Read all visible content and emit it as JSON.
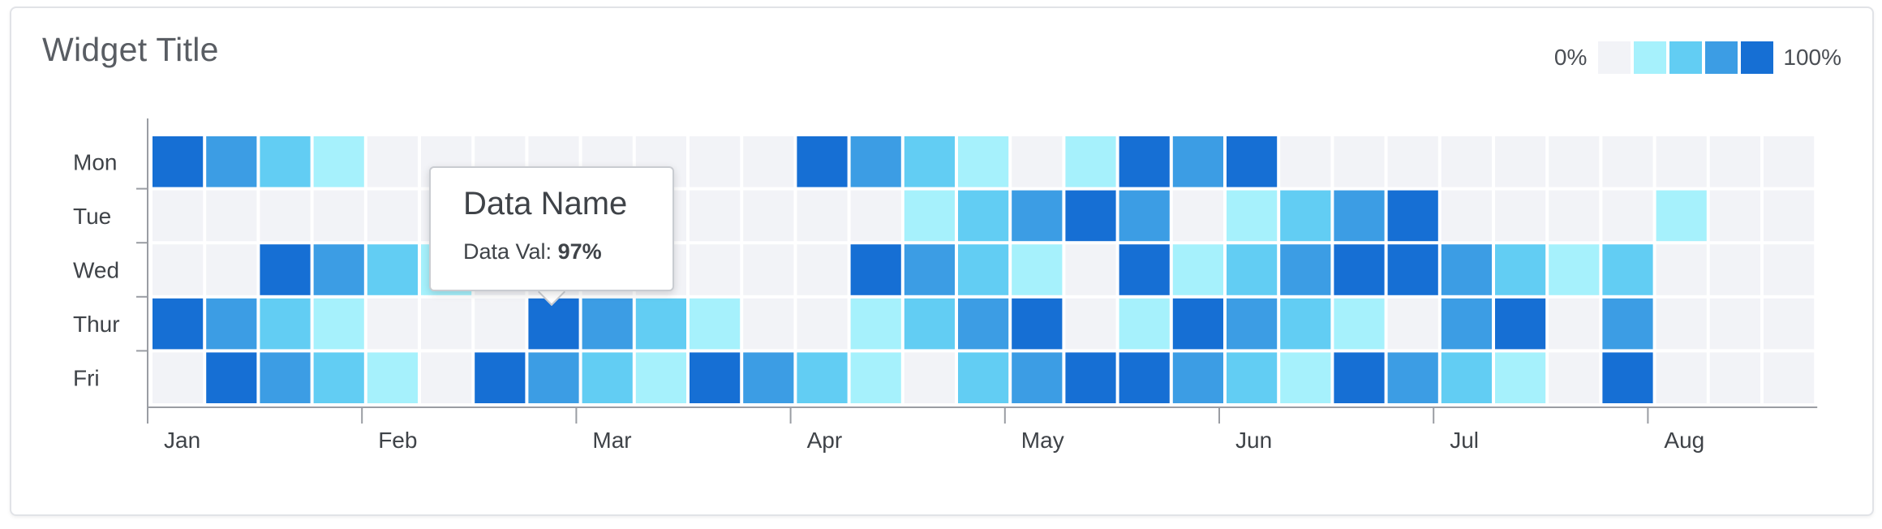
{
  "widget": {
    "title": "Widget Title"
  },
  "legend": {
    "min_label": "0%",
    "max_label": "100%",
    "colors": [
      "#f2f3f7",
      "#a6f1fc",
      "#62cdf3",
      "#3c9de4",
      "#166fd4"
    ]
  },
  "tooltip": {
    "title": "Data Name",
    "value_label": "Data Val:",
    "value": "97%"
  },
  "chart_data": {
    "type": "heatmap",
    "title": "Widget Title",
    "y_categories": [
      "Mon",
      "Tue",
      "Wed",
      "Thur",
      "Fri"
    ],
    "x_tick_labels": [
      "Jan",
      "Feb",
      "Mar",
      "Apr",
      "May",
      "Jun",
      "Jul",
      "Aug"
    ],
    "columns": 31,
    "scale": [
      "0%",
      "100%"
    ],
    "levels": 5,
    "values": [
      [
        4,
        3,
        2,
        1,
        0,
        0,
        0,
        0,
        0,
        0,
        0,
        0,
        4,
        3,
        2,
        1,
        0,
        1,
        4,
        3,
        4,
        0,
        0,
        0,
        0,
        0,
        0,
        0,
        0,
        0,
        0
      ],
      [
        0,
        0,
        0,
        0,
        0,
        0,
        0,
        0,
        0,
        0,
        0,
        0,
        0,
        0,
        1,
        2,
        3,
        4,
        3,
        0,
        1,
        2,
        3,
        4,
        0,
        0,
        0,
        0,
        1,
        0,
        0
      ],
      [
        0,
        0,
        4,
        3,
        2,
        1,
        0,
        0,
        0,
        0,
        0,
        0,
        0,
        4,
        3,
        2,
        1,
        0,
        4,
        1,
        2,
        3,
        4,
        4,
        3,
        2,
        1,
        2,
        0,
        0,
        0
      ],
      [
        4,
        3,
        2,
        1,
        0,
        0,
        0,
        4,
        3,
        2,
        1,
        0,
        0,
        1,
        2,
        3,
        4,
        0,
        1,
        4,
        3,
        2,
        1,
        0,
        3,
        4,
        0,
        3,
        0,
        0,
        0
      ],
      [
        0,
        4,
        3,
        2,
        1,
        0,
        4,
        3,
        2,
        1,
        4,
        3,
        2,
        1,
        0,
        2,
        3,
        4,
        4,
        3,
        2,
        1,
        4,
        3,
        2,
        1,
        0,
        4,
        0,
        0,
        0
      ]
    ]
  }
}
